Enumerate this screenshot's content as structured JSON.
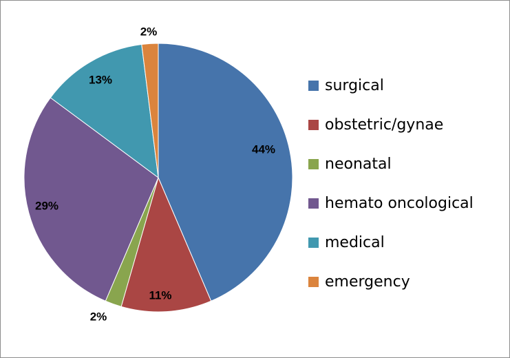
{
  "chart_data": {
    "type": "pie",
    "title": "",
    "legend_position": "right",
    "slices": [
      {
        "label": "surgical",
        "value": 44,
        "display": "44%",
        "color": "#4674AB"
      },
      {
        "label": "obstetric/gynae",
        "value": 11,
        "display": "11%",
        "color": "#AA4644"
      },
      {
        "label": "neonatal",
        "value": 2,
        "display": "2%",
        "color": "#89A54E"
      },
      {
        "label": "hemato oncological",
        "value": 29,
        "display": "29%",
        "color": "#71588F"
      },
      {
        "label": "medical",
        "value": 13,
        "display": "13%",
        "color": "#4198AF"
      },
      {
        "label": "emergency",
        "value": 2,
        "display": "2%",
        "color": "#DB843D"
      }
    ]
  }
}
